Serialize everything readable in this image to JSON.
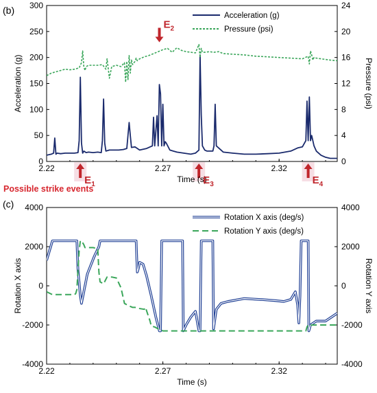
{
  "colors": {
    "accel": "#1a2a6c",
    "pressure": "#3aa65a",
    "rot_x": "#1f3f94",
    "rot_y": "#3aa65a",
    "event": "#c0262c",
    "highlight": "#f2d0d8"
  },
  "annotation": {
    "strike_label": "Possible strike events"
  },
  "chart_data": [
    {
      "type": "line",
      "panel_label": "(b)",
      "xlabel": "Time (s)",
      "ylabel": "Acceleration (g)",
      "y2label": "Pressure (psi)",
      "xlim": [
        2.22,
        2.345
      ],
      "ylim": [
        0,
        300
      ],
      "y2lim": [
        0,
        24
      ],
      "xticks": [
        "2.22",
        "2.27",
        "2.32"
      ],
      "xtick_values": [
        2.22,
        2.27,
        2.32
      ],
      "yticks": [
        "0",
        "50",
        "100",
        "150",
        "200",
        "250",
        "300"
      ],
      "yticks2": [
        "0",
        "4",
        "8",
        "12",
        "16",
        "20",
        "24"
      ],
      "legend_position": "top-right",
      "series": [
        {
          "name": "Acceleration (g)",
          "axis": "left",
          "style": "solid",
          "x": [
            2.22,
            2.222,
            2.223,
            2.2235,
            2.224,
            2.2245,
            2.226,
            2.228,
            2.23,
            2.232,
            2.2335,
            2.234,
            2.2345,
            2.235,
            2.2355,
            2.236,
            2.237,
            2.238,
            2.24,
            2.242,
            2.2435,
            2.244,
            2.2445,
            2.245,
            2.2455,
            2.247,
            2.249,
            2.251,
            2.253,
            2.2545,
            2.255,
            2.2555,
            2.256,
            2.2565,
            2.258,
            2.26,
            2.263,
            2.2655,
            2.266,
            2.2665,
            2.2675,
            2.268,
            2.2685,
            2.269,
            2.2695,
            2.27,
            2.2705,
            2.271,
            2.2715,
            2.273,
            2.276,
            2.279,
            2.282,
            2.284,
            2.2855,
            2.286,
            2.2865,
            2.287,
            2.288,
            2.289,
            2.29,
            2.291,
            2.2915,
            2.292,
            2.2925,
            2.293,
            2.296,
            2.3,
            2.305,
            2.31,
            2.315,
            2.32,
            2.325,
            2.328,
            2.33,
            2.3315,
            2.332,
            2.3325,
            2.333,
            2.3335,
            2.334,
            2.3345,
            2.335,
            2.3355,
            2.336,
            2.337,
            2.338,
            2.34,
            2.342,
            2.345
          ],
          "values": [
            12,
            14,
            16,
            45,
            14,
            16,
            15,
            16,
            16,
            16,
            17,
            40,
            162,
            35,
            16,
            20,
            17,
            18,
            17,
            18,
            17,
            40,
            120,
            35,
            20,
            22,
            22,
            22,
            23,
            25,
            50,
            75,
            50,
            27,
            28,
            22,
            25,
            30,
            85,
            30,
            88,
            30,
            148,
            130,
            30,
            110,
            30,
            38,
            35,
            22,
            18,
            16,
            14,
            16,
            22,
            205,
            90,
            30,
            22,
            20,
            20,
            20,
            20,
            30,
            110,
            30,
            18,
            16,
            14,
            14,
            15,
            16,
            20,
            26,
            28,
            40,
            116,
            40,
            124,
            40,
            50,
            40,
            30,
            25,
            20,
            16,
            12,
            8,
            6,
            6
          ]
        },
        {
          "name": "Pressure (psi)",
          "axis": "right",
          "style": "dashed",
          "x": [
            2.22,
            2.222,
            2.224,
            2.226,
            2.228,
            2.23,
            2.232,
            2.234,
            2.235,
            2.2355,
            2.236,
            2.2365,
            2.237,
            2.238,
            2.24,
            2.242,
            2.244,
            2.2455,
            2.246,
            2.247,
            2.248,
            2.25,
            2.252,
            2.2535,
            2.254,
            2.2545,
            2.255,
            2.2555,
            2.256,
            2.2565,
            2.257,
            2.258,
            2.2585,
            2.259,
            2.26,
            2.262,
            2.264,
            2.266,
            2.268,
            2.27,
            2.272,
            2.274,
            2.276,
            2.278,
            2.28,
            2.282,
            2.284,
            2.2855,
            2.286,
            2.2865,
            2.287,
            2.288,
            2.29,
            2.292,
            2.294,
            2.296,
            2.3,
            2.305,
            2.31,
            2.315,
            2.32,
            2.325,
            2.33,
            2.3325,
            2.333,
            2.3335,
            2.334,
            2.3345,
            2.335,
            2.336,
            2.338,
            2.34,
            2.342,
            2.345
          ],
          "values": [
            13.2,
            13.6,
            13.8,
            14.0,
            14.2,
            14.1,
            14.2,
            14.4,
            15.2,
            17.0,
            14.6,
            14.0,
            14.6,
            14.8,
            14.8,
            14.8,
            14.9,
            14.2,
            15.8,
            12.8,
            14.6,
            14.8,
            14.6,
            15.2,
            12.2,
            15.4,
            12.6,
            16.3,
            13.6,
            15.6,
            14.9,
            15.4,
            15.9,
            15.5,
            15.8,
            16.1,
            16.3,
            16.6,
            16.9,
            17.2,
            17.4,
            16.8,
            17.5,
            17.1,
            16.9,
            16.8,
            16.7,
            18.0,
            16.0,
            17.4,
            16.8,
            16.8,
            16.9,
            16.8,
            16.9,
            16.6,
            16.5,
            16.4,
            16.2,
            16.1,
            16.0,
            15.9,
            15.8,
            16.2,
            15.0,
            17.0,
            16.4,
            15.6,
            16.0,
            15.9,
            15.8,
            15.7,
            15.6,
            15.5
          ]
        }
      ],
      "events": [
        {
          "label": "E",
          "sub": "1",
          "x": 2.2345,
          "direction": "up"
        },
        {
          "label": "E",
          "sub": "2",
          "x": 2.2685,
          "direction": "down"
        },
        {
          "label": "E",
          "sub": "3",
          "x": 2.2855,
          "direction": "up"
        },
        {
          "label": "E",
          "sub": "4",
          "x": 2.3325,
          "direction": "up"
        }
      ]
    },
    {
      "type": "line",
      "panel_label": "(c)",
      "xlabel": "Time (s)",
      "ylabel": "Rotation X axis",
      "y2label": "Rotation Y axis",
      "xlim": [
        2.22,
        2.345
      ],
      "ylim": [
        -4000,
        4000
      ],
      "y2lim": [
        -4000,
        4000
      ],
      "xticks": [
        "2.22",
        "2.27",
        "2.32"
      ],
      "xtick_values": [
        2.22,
        2.27,
        2.32
      ],
      "yticks": [
        "-4000",
        "-2000",
        "0",
        "2000",
        "4000"
      ],
      "yticks2": [
        "-4000",
        "-2000",
        "0",
        "2000",
        "4000"
      ],
      "legend_position": "top-right",
      "series": [
        {
          "name": "Rotation X axis (deg/s)",
          "axis": "left",
          "style": "double",
          "x": [
            2.22,
            2.2225,
            2.233,
            2.2335,
            2.2345,
            2.235,
            2.236,
            2.2375,
            2.2405,
            2.2425,
            2.243,
            2.2435,
            2.2585,
            2.259,
            2.2595,
            2.26,
            2.2615,
            2.263,
            2.265,
            2.267,
            2.2685,
            2.269,
            2.2695,
            2.2785,
            2.2788,
            2.28,
            2.282,
            2.284,
            2.2855,
            2.286,
            2.2865,
            2.2915,
            2.2918,
            2.293,
            2.295,
            2.298,
            2.305,
            2.312,
            2.318,
            2.322,
            2.325,
            2.327,
            2.328,
            2.3285,
            2.329,
            2.3295,
            2.3325,
            2.3328,
            2.3335,
            2.336,
            2.34,
            2.345
          ],
          "values": [
            1300,
            2300,
            2300,
            800,
            -500,
            -900,
            -300,
            600,
            1500,
            2000,
            2300,
            2300,
            2300,
            700,
            900,
            1200,
            1100,
            500,
            -500,
            -1600,
            -2300,
            -2300,
            2300,
            2300,
            -2300,
            -2000,
            -1600,
            -1300,
            -2300,
            -2300,
            2300,
            2300,
            -2200,
            -1200,
            -900,
            -800,
            -650,
            -700,
            -750,
            -800,
            -700,
            -300,
            -1000,
            -1900,
            -500,
            2300,
            2300,
            -2300,
            -2000,
            -1800,
            -1800,
            -1400
          ]
        },
        {
          "name": "Rotation Y axis (deg/s)",
          "axis": "right",
          "style": "dashed",
          "x": [
            2.22,
            2.2225,
            2.226,
            2.23,
            2.232,
            2.2325,
            2.233,
            2.2335,
            2.234,
            2.2345,
            2.235,
            2.2355,
            2.236,
            2.2365,
            2.238,
            2.24,
            2.242,
            2.2425,
            2.243,
            2.2445,
            2.246,
            2.248,
            2.25,
            2.252,
            2.2535,
            2.255,
            2.257,
            2.258,
            2.2595,
            2.262,
            2.2625,
            2.2645,
            2.265,
            2.2665,
            2.268,
            2.27,
            2.28,
            2.29,
            2.3,
            2.31,
            2.32,
            2.33,
            2.3315,
            2.332,
            2.3325,
            2.333,
            2.334,
            2.336,
            2.34,
            2.345
          ],
          "values": [
            -300,
            -450,
            -450,
            -450,
            -450,
            -400,
            -200,
            800,
            1800,
            2300,
            2300,
            2200,
            2100,
            1950,
            1950,
            1950,
            1900,
            700,
            200,
            100,
            450,
            450,
            400,
            -100,
            -900,
            -1000,
            -1100,
            -1100,
            -1150,
            -1200,
            -1100,
            -1800,
            -2050,
            -2100,
            -2200,
            -2300,
            -2300,
            -2300,
            -2300,
            -2300,
            -2300,
            -2300,
            -2300,
            -2100,
            -2000,
            -2050,
            -2000,
            -2000,
            -2000,
            -2000
          ]
        }
      ]
    }
  ]
}
